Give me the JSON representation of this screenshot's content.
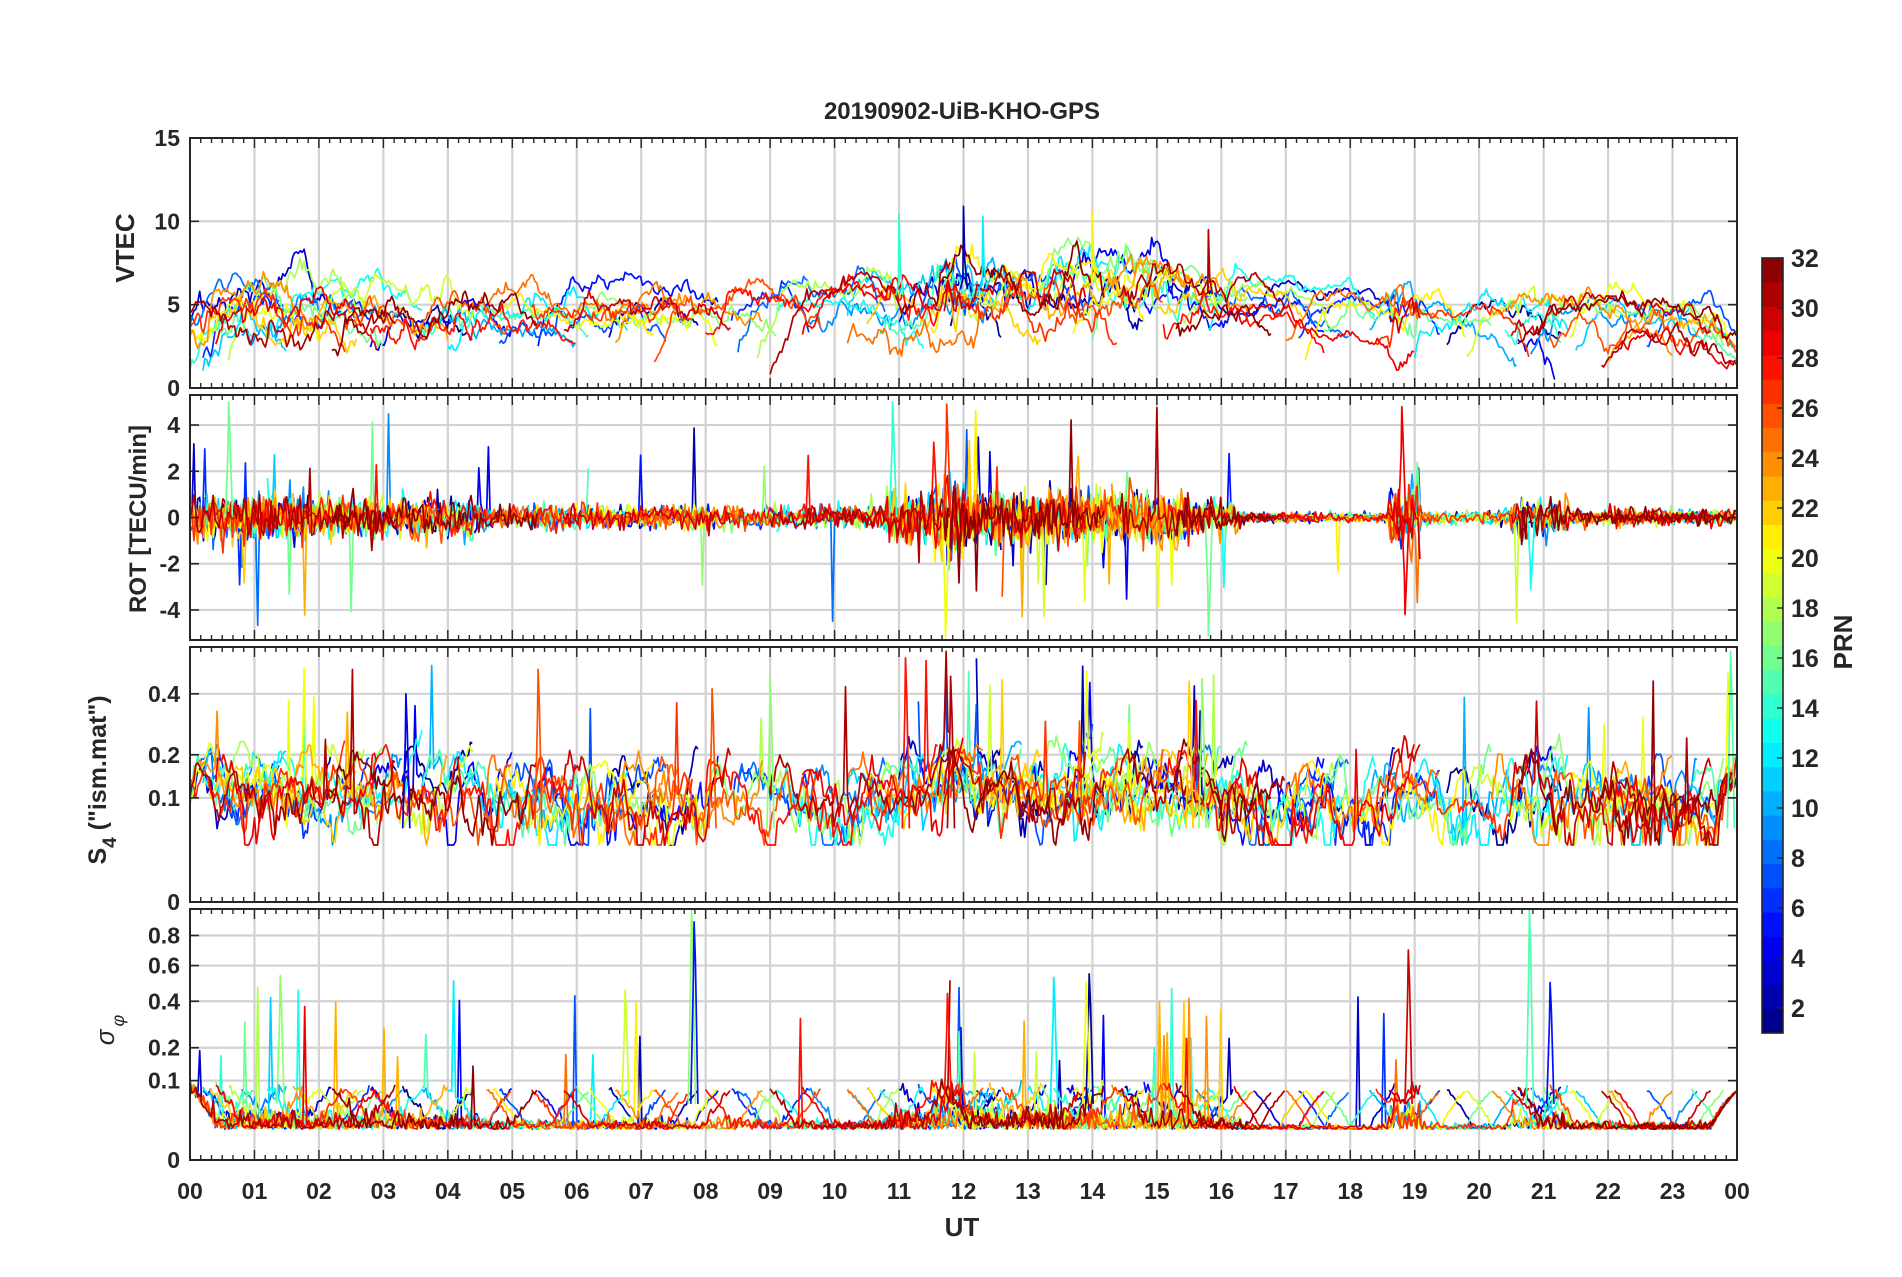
{
  "figure": {
    "title": "20190902-UiB-KHO-GPS",
    "xlabel": "UT",
    "time_ticks": [
      "00",
      "01",
      "02",
      "03",
      "04",
      "05",
      "06",
      "07",
      "08",
      "09",
      "10",
      "11",
      "12",
      "13",
      "14",
      "15",
      "16",
      "17",
      "18",
      "19",
      "20",
      "21",
      "22",
      "23",
      "00"
    ]
  },
  "colorbar": {
    "label": "PRN",
    "range": [
      1,
      32
    ],
    "ticks": [
      "2",
      "4",
      "6",
      "8",
      "10",
      "12",
      "14",
      "16",
      "18",
      "20",
      "22",
      "24",
      "26",
      "28",
      "30",
      "32"
    ],
    "colormap": "jet"
  },
  "chart_data": [
    {
      "type": "line",
      "panel": "vtec",
      "ylabel": "VTEC",
      "ylim": [
        0,
        15
      ],
      "ytick_values": [
        0,
        5,
        10,
        15
      ],
      "ytick_labels": [
        "0",
        "5",
        "10",
        "15"
      ],
      "grid": true,
      "series_summary": "32 PRN traces; baseline ~4-5 TECU at night rising to ~6-8 TECU 11-16 UT, peaks near 10.5 at 12 UT and 14 UT"
    },
    {
      "type": "line",
      "panel": "rot",
      "ylabel": "ROT [TECU/min]",
      "ylim": [
        -5.3,
        5.3
      ],
      "ytick_values": [
        -4,
        -2,
        0,
        2,
        4
      ],
      "ytick_labels": [
        "-4",
        "-2",
        "0",
        "2",
        "4"
      ],
      "grid": true,
      "series_summary": "Fluctuations around 0; bursts up to ±5 near 11.7 UT, 12-15 UT, 18.8 UT and 21 UT"
    },
    {
      "type": "line",
      "panel": "s4",
      "ylabel": "S4 (\"ism.mat\")",
      "ylabel_main": "S",
      "ylabel_sub": "4",
      "ylabel_rest": " (\"ism.mat\")",
      "ylim": [
        0,
        0.6
      ],
      "yscale": "sqrt",
      "ytick_values": [
        0,
        0.1,
        0.2,
        0.4
      ],
      "ytick_labels": [
        "0",
        "0.1",
        "0.2",
        "0.4"
      ],
      "grid": true,
      "series_summary": "Background 0.05-0.15 with spikes to 0.4-0.55 at ~05.4, 07.8, 09.0, 11.1, 11.8, 15.5 UT"
    },
    {
      "type": "line",
      "panel": "sigma_phi",
      "ylabel": "σφ",
      "ylabel_main": "σ",
      "ylabel_sub": "φ",
      "ylim": [
        0,
        1
      ],
      "yscale": "sqrt",
      "ytick_values": [
        0,
        0.1,
        0.2,
        0.4,
        0.6,
        0.8
      ],
      "ytick_labels": [
        "0",
        "0.1",
        "0.2",
        "0.4",
        "0.6",
        "0.8"
      ],
      "grid": true,
      "series_summary": "Mostly <0.05; spikes ~1.0 at 07.8 and 20.8 UT, 0.7 at 18.9 UT, 0.55 at 13.5-14.0 UT, 0.5 at 21.1 UT"
    }
  ]
}
